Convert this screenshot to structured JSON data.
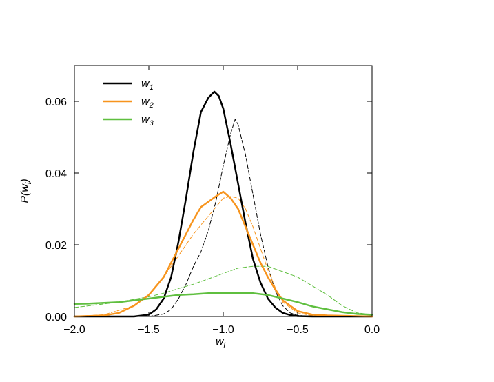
{
  "chart_data": {
    "type": "line",
    "xlabel": "w",
    "xlabel_sub": "i",
    "ylabel": "P(w",
    "ylabel_sub": "i",
    "ylabel_close": ")",
    "xlim": [
      -2.0,
      0.0
    ],
    "ylim": [
      0.0,
      0.07
    ],
    "xticks": [
      -2.0,
      -1.5,
      -1.0,
      -0.5,
      0.0
    ],
    "xtick_labels": [
      "−2.0",
      "−1.5",
      "−1.0",
      "−0.5",
      "0.0"
    ],
    "yticks": [
      0.0,
      0.02,
      0.04,
      0.06
    ],
    "ytick_labels": [
      "0.00",
      "0.02",
      "0.04",
      "0.06"
    ],
    "grid": false,
    "legend_position": "top-left",
    "series": [
      {
        "name": "w",
        "name_sub": "1",
        "color": "#000000",
        "style": "solid",
        "width": 2.5,
        "legend": true,
        "x": [
          -2.0,
          -1.6,
          -1.5,
          -1.45,
          -1.4,
          -1.35,
          -1.3,
          -1.25,
          -1.2,
          -1.15,
          -1.1,
          -1.06,
          -1.03,
          -1.0,
          -0.95,
          -0.9,
          -0.85,
          -0.8,
          -0.75,
          -0.7,
          -0.65,
          -0.6,
          -0.55,
          -0.5,
          -0.4,
          0.0
        ],
        "y": [
          0.0,
          0.0,
          0.0005,
          0.002,
          0.005,
          0.011,
          0.021,
          0.033,
          0.046,
          0.057,
          0.061,
          0.0627,
          0.0615,
          0.058,
          0.048,
          0.037,
          0.026,
          0.016,
          0.0095,
          0.005,
          0.0025,
          0.001,
          0.0004,
          0.0001,
          0.0,
          0.0
        ]
      },
      {
        "name": "w",
        "name_sub": "2",
        "color": "#f7941d",
        "style": "solid",
        "width": 2.5,
        "legend": true,
        "x": [
          -2.0,
          -1.8,
          -1.7,
          -1.6,
          -1.5,
          -1.4,
          -1.3,
          -1.2,
          -1.15,
          -1.1,
          -1.05,
          -1.0,
          -0.95,
          -0.9,
          -0.85,
          -0.8,
          -0.75,
          -0.7,
          -0.65,
          -0.6,
          -0.5,
          -0.4,
          -0.3,
          -0.2,
          -0.1,
          0.0
        ],
        "y": [
          0.0,
          0.0003,
          0.001,
          0.003,
          0.006,
          0.011,
          0.019,
          0.027,
          0.0305,
          0.032,
          0.0335,
          0.0348,
          0.033,
          0.03,
          0.025,
          0.02,
          0.015,
          0.011,
          0.0075,
          0.0045,
          0.0015,
          0.0005,
          0.0003,
          0.0002,
          0.0001,
          0.0
        ]
      },
      {
        "name": "w",
        "name_sub": "3",
        "color": "#5fbf3f",
        "style": "solid",
        "width": 2.5,
        "legend": true,
        "x": [
          -2.0,
          -1.9,
          -1.8,
          -1.7,
          -1.6,
          -1.5,
          -1.4,
          -1.3,
          -1.2,
          -1.1,
          -1.0,
          -0.9,
          -0.8,
          -0.7,
          -0.6,
          -0.5,
          -0.4,
          -0.3,
          -0.2,
          -0.1,
          0.0
        ],
        "y": [
          0.0035,
          0.0036,
          0.0038,
          0.004,
          0.0045,
          0.005,
          0.0055,
          0.006,
          0.0062,
          0.0065,
          0.0065,
          0.0066,
          0.0065,
          0.006,
          0.005,
          0.004,
          0.0028,
          0.002,
          0.0012,
          0.0007,
          0.0005
        ]
      },
      {
        "color": "#000000",
        "style": "dashed",
        "width": 1.0,
        "legend": false,
        "x": [
          -2.0,
          -1.5,
          -1.4,
          -1.35,
          -1.3,
          -1.25,
          -1.2,
          -1.15,
          -1.1,
          -1.05,
          -1.0,
          -0.95,
          -0.92,
          -0.9,
          -0.85,
          -0.8,
          -0.75,
          -0.7,
          -0.65,
          -0.6,
          -0.55,
          -0.5,
          -0.4,
          0.0
        ],
        "y": [
          0.0,
          0.0,
          0.0007,
          0.002,
          0.005,
          0.009,
          0.014,
          0.018,
          0.024,
          0.032,
          0.042,
          0.051,
          0.055,
          0.0535,
          0.045,
          0.034,
          0.023,
          0.014,
          0.007,
          0.003,
          0.001,
          0.0003,
          0.0,
          0.0
        ]
      },
      {
        "color": "#f7941d",
        "style": "dashed",
        "width": 1.0,
        "legend": false,
        "x": [
          -2.0,
          -1.8,
          -1.6,
          -1.5,
          -1.4,
          -1.3,
          -1.2,
          -1.1,
          -1.05,
          -1.0,
          -0.95,
          -0.9,
          -0.85,
          -0.8,
          -0.75,
          -0.7,
          -0.65,
          -0.6,
          -0.5,
          -0.4,
          0.0
        ],
        "y": [
          0.0,
          0.0005,
          0.003,
          0.006,
          0.011,
          0.017,
          0.023,
          0.028,
          0.0305,
          0.033,
          0.0335,
          0.033,
          0.03,
          0.025,
          0.019,
          0.013,
          0.008,
          0.004,
          0.001,
          0.0002,
          0.0
        ]
      },
      {
        "color": "#5fbf3f",
        "style": "dashed",
        "width": 1.0,
        "legend": false,
        "x": [
          -2.0,
          -1.9,
          -1.8,
          -1.7,
          -1.6,
          -1.5,
          -1.4,
          -1.3,
          -1.2,
          -1.1,
          -1.0,
          -0.9,
          -0.8,
          -0.7,
          -0.6,
          -0.5,
          -0.4,
          -0.3,
          -0.2,
          -0.1,
          0.0
        ],
        "y": [
          0.0025,
          0.003,
          0.0035,
          0.004,
          0.0048,
          0.0055,
          0.0065,
          0.0078,
          0.009,
          0.0105,
          0.012,
          0.0135,
          0.014,
          0.014,
          0.0125,
          0.011,
          0.0085,
          0.006,
          0.003,
          0.001,
          0.0005
        ]
      }
    ]
  }
}
